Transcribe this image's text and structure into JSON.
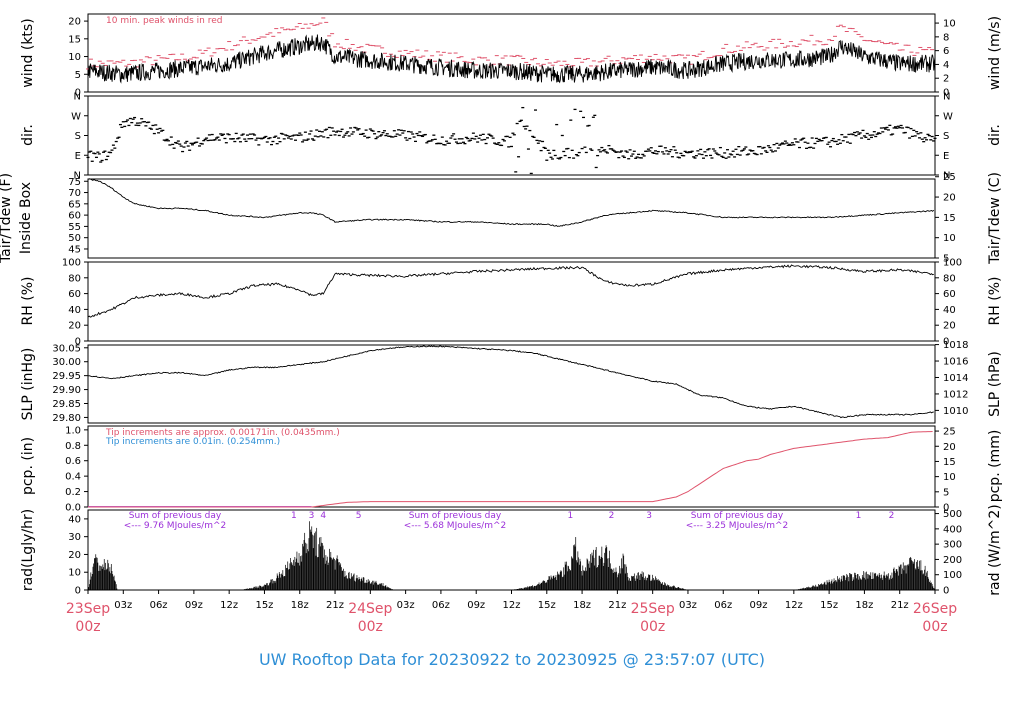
{
  "title": "UW Rooftop Data for 20230922  to  20230925 @ 23:57:07  (UTC)",
  "colors": {
    "title": "#2f8fd6",
    "red": "#df536b",
    "blue": "#2f8fd6",
    "purple": "#9b30d9",
    "ink": "#000000"
  },
  "time_axis": {
    "hour_ticks": [
      "03z",
      "06z",
      "09z",
      "12z",
      "15z",
      "18z",
      "21z"
    ],
    "day_labels": [
      {
        "day": "23Sep",
        "hour": "00z"
      },
      {
        "day": "24Sep",
        "hour": "00z"
      },
      {
        "day": "25Sep",
        "hour": "00z"
      },
      {
        "day": "26Sep",
        "hour": "00z"
      }
    ]
  },
  "panels": {
    "wind": {
      "ylabel_left": "wind (kts)",
      "ylabel_right": "wind (m/s)",
      "left_ticks": [
        "0",
        "5",
        "10",
        "15",
        "20"
      ],
      "right_ticks": [
        "0",
        "2",
        "4",
        "6",
        "8",
        "10"
      ],
      "note": "10 min. peak winds in red"
    },
    "dir": {
      "ylabel_left": "dir.",
      "ylabel_right": "dir.",
      "left_ticks": [
        "N",
        "E",
        "S",
        "W",
        "N"
      ],
      "right_ticks": [
        "N",
        "E",
        "S",
        "W",
        "N"
      ]
    },
    "temp": {
      "ylabel_left_1": "Tair/Tdew (F)",
      "ylabel_left_2": "Inside Box",
      "ylabel_right": "Tair/Tdew (C)",
      "left_ticks": [
        "45",
        "50",
        "55",
        "60",
        "65",
        "70",
        "75"
      ],
      "right_ticks": [
        "5",
        "10",
        "15",
        "20",
        "25"
      ]
    },
    "rh": {
      "ylabel_left": "RH (%)",
      "ylabel_right": "RH (%)",
      "left_ticks": [
        "0",
        "20",
        "40",
        "60",
        "80",
        "100"
      ],
      "right_ticks": [
        "0",
        "20",
        "40",
        "60",
        "80",
        "100"
      ]
    },
    "slp": {
      "ylabel_left": "SLP (inHg)",
      "ylabel_right": "SLP (hPa)",
      "left_ticks": [
        "29.80",
        "29.85",
        "29.90",
        "29.95",
        "30.00",
        "30.05"
      ],
      "right_ticks": [
        "1010",
        "1012",
        "1014",
        "1016",
        "1018"
      ]
    },
    "pcp": {
      "ylabel_left": "pcp. (in)",
      "ylabel_right": "pcp. (mm)",
      "left_ticks": [
        "0.0",
        "0.2",
        "0.4",
        "0.6",
        "0.8",
        "1.0"
      ],
      "right_ticks": [
        "0",
        "5",
        "10",
        "15",
        "20",
        "25"
      ],
      "note_red": "Tip increments are approx. 0.00171in. (0.0435mm.)",
      "note_blue": "Tip increments are 0.01in. (0.254mm.)"
    },
    "rad": {
      "ylabel_left": "rad(Lgly/hr)",
      "ylabel_right": "rad (W/m^2)",
      "left_ticks": [
        "0",
        "10",
        "20",
        "30",
        "40"
      ],
      "right_ticks": [
        "0",
        "100",
        "200",
        "300",
        "400",
        "500"
      ],
      "sums": [
        {
          "line1": "Sum of previous day",
          "line2": "<--- 9.76 MJoules/m^2"
        },
        {
          "line1": "Sum of previous day",
          "line2": "<--- 5.68 MJoules/m^2"
        },
        {
          "line1": "Sum of previous day",
          "line2": "<--- 3.25 MJoules/m^2"
        }
      ],
      "markers": [
        {
          "label": "1",
          "hour": 17.5
        },
        {
          "label": "3",
          "hour": 19.0
        },
        {
          "label": "4",
          "hour": 20.0
        },
        {
          "label": "5",
          "hour": 23.0
        },
        {
          "label": "1",
          "hour": 41.0
        },
        {
          "label": "2",
          "hour": 44.5
        },
        {
          "label": "3",
          "hour": 47.7
        },
        {
          "label": "1",
          "hour": 65.5
        },
        {
          "label": "2",
          "hour": 68.3
        }
      ]
    }
  },
  "chart_data": [
    {
      "type": "line",
      "panel": "wind",
      "x_unit": "hours since 2023-09-23 00z",
      "series": [
        {
          "name": "wind",
          "x": [
            0,
            3,
            6,
            9,
            12,
            15,
            18,
            20,
            21,
            24,
            27,
            30,
            33,
            36,
            39,
            42,
            45,
            48,
            51,
            54,
            57,
            60,
            63,
            64,
            66,
            69,
            72
          ],
          "values": [
            6,
            5,
            6,
            7,
            8,
            11,
            13,
            14,
            10,
            9,
            8,
            7,
            6,
            6,
            5,
            5,
            6,
            7,
            6,
            8,
            9,
            9,
            10,
            13,
            10,
            8,
            8
          ]
        },
        {
          "name": "10 min. peak winds",
          "x": [
            0,
            3,
            6,
            9,
            12,
            15,
            18,
            20,
            21,
            24,
            27,
            30,
            33,
            36,
            39,
            42,
            45,
            48,
            51,
            54,
            57,
            60,
            63,
            64,
            66,
            69,
            72
          ],
          "values": [
            8,
            8,
            9,
            10,
            13,
            16,
            18,
            20,
            14,
            12,
            11,
            10,
            9,
            9,
            8,
            8,
            9,
            10,
            9,
            12,
            13,
            14,
            15,
            18,
            15,
            12,
            11
          ]
        }
      ],
      "ylim": [
        0,
        22
      ]
    },
    {
      "type": "scatter",
      "panel": "dir",
      "x_unit": "hours since 2023-09-23 00z",
      "x": [
        0,
        1,
        2,
        3,
        4,
        6,
        8,
        10,
        12,
        15,
        18,
        21,
        24,
        27,
        30,
        33,
        36,
        36.5,
        37,
        39,
        42,
        44,
        46,
        48,
        51,
        54,
        57,
        60,
        63,
        66,
        69,
        71,
        72
      ],
      "values": [
        90,
        80,
        100,
        240,
        250,
        200,
        120,
        170,
        170,
        160,
        170,
        200,
        190,
        180,
        160,
        170,
        150,
        260,
        240,
        90,
        100,
        120,
        90,
        110,
        100,
        100,
        110,
        140,
        150,
        180,
        210,
        170,
        150
      ],
      "ylim": [
        0,
        360
      ]
    },
    {
      "type": "line",
      "panel": "temp",
      "x_unit": "hours since 2023-09-23 00z",
      "x": [
        0,
        1,
        2,
        3,
        4,
        6,
        8,
        10,
        12,
        15,
        18,
        19,
        20,
        21,
        24,
        27,
        30,
        33,
        36,
        39,
        40,
        42,
        44,
        46,
        48,
        51,
        54,
        57,
        60,
        63,
        66,
        69,
        72
      ],
      "values": [
        76,
        75,
        72,
        68,
        65,
        63,
        63,
        62,
        60,
        59,
        61,
        61,
        60,
        57,
        58,
        58,
        57,
        57,
        56,
        56,
        55,
        57,
        60,
        61,
        62,
        61,
        59,
        59,
        59,
        59,
        60,
        61,
        62
      ],
      "ylim": [
        41,
        76
      ]
    },
    {
      "type": "line",
      "panel": "rh",
      "x_unit": "hours since 2023-09-23 00z",
      "x": [
        0,
        2,
        4,
        6,
        8,
        10,
        12,
        14,
        16,
        18,
        19,
        20,
        21,
        24,
        27,
        30,
        33,
        36,
        39,
        42,
        44,
        46,
        48,
        51,
        54,
        57,
        60,
        63,
        66,
        69,
        72
      ],
      "values": [
        30,
        40,
        55,
        58,
        60,
        55,
        60,
        70,
        72,
        65,
        58,
        60,
        85,
        83,
        82,
        85,
        88,
        90,
        92,
        93,
        75,
        70,
        72,
        85,
        90,
        93,
        95,
        93,
        88,
        90,
        85
      ],
      "ylim": [
        0,
        100
      ]
    },
    {
      "type": "line",
      "panel": "slp",
      "x_unit": "hours since 2023-09-23 00z",
      "x": [
        0,
        2,
        4,
        6,
        8,
        10,
        12,
        14,
        16,
        18,
        20,
        22,
        24,
        26,
        28,
        30,
        32,
        34,
        36,
        38,
        40,
        42,
        44,
        46,
        48,
        50,
        52,
        54,
        56,
        58,
        60,
        62,
        64,
        66,
        68,
        70,
        72
      ],
      "values": [
        29.95,
        29.94,
        29.95,
        29.96,
        29.96,
        29.95,
        29.97,
        29.98,
        29.98,
        29.99,
        30.0,
        30.02,
        30.04,
        30.05,
        30.055,
        30.055,
        30.05,
        30.045,
        30.04,
        30.03,
        30.01,
        29.99,
        29.97,
        29.95,
        29.93,
        29.92,
        29.88,
        29.87,
        29.84,
        29.83,
        29.84,
        29.82,
        29.8,
        29.81,
        29.81,
        29.81,
        29.82
      ],
      "ylim": [
        29.78,
        30.06
      ]
    },
    {
      "type": "line",
      "panel": "pcp",
      "x_unit": "hours since 2023-09-23 00z",
      "x": [
        0,
        19,
        20,
        21,
        22,
        24,
        30,
        36,
        42,
        46,
        48,
        49,
        50,
        51,
        52,
        53,
        54,
        55,
        56,
        57,
        58,
        60,
        62,
        64,
        66,
        68,
        70,
        72
      ],
      "values": [
        0.0,
        0.0,
        0.02,
        0.04,
        0.06,
        0.07,
        0.07,
        0.07,
        0.07,
        0.07,
        0.07,
        0.1,
        0.13,
        0.2,
        0.3,
        0.4,
        0.5,
        0.55,
        0.6,
        0.62,
        0.68,
        0.76,
        0.8,
        0.84,
        0.88,
        0.9,
        0.97,
        0.98
      ],
      "ylim": [
        0,
        1.05
      ]
    },
    {
      "type": "area",
      "panel": "rad",
      "x_unit": "hours since 2023-09-23 00z",
      "x": [
        0,
        0.5,
        1,
        2,
        2.5,
        13,
        15,
        16,
        17,
        18,
        19,
        20,
        21,
        22,
        23,
        24,
        25,
        26,
        36,
        38,
        40,
        41,
        41.5,
        42,
        43,
        44,
        45,
        45.5,
        46,
        47,
        48,
        49,
        50,
        51,
        60,
        62,
        64,
        66,
        67,
        68,
        69,
        70,
        71,
        72
      ],
      "values": [
        0,
        20,
        17,
        15,
        0,
        0,
        3,
        8,
        15,
        25,
        38,
        25,
        20,
        10,
        8,
        6,
        4,
        0,
        0,
        3,
        10,
        18,
        28,
        12,
        22,
        25,
        12,
        20,
        8,
        10,
        8,
        4,
        2,
        0,
        0,
        3,
        8,
        10,
        9,
        10,
        13,
        18,
        15,
        0
      ],
      "ylim": [
        0,
        45
      ]
    }
  ]
}
